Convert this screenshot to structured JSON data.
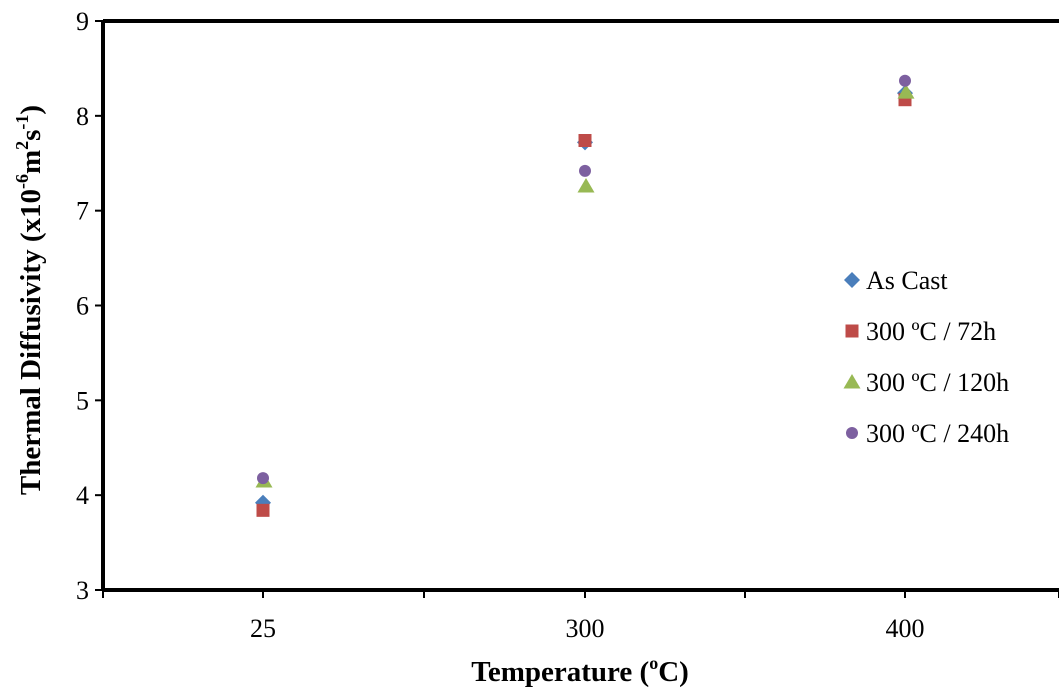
{
  "chart_data": {
    "type": "scatter",
    "title": "",
    "xlabel": "Temperature (°C)",
    "xlabel_main": "Temperature (",
    "xlabel_sup": "o",
    "xlabel_end": "C)",
    "ylabel": "Thermal Diffusivity (x10-6m2s-1)",
    "ylabel_main": "Thermal Diffusivity (x10",
    "ylabel_sup1": "-6",
    "ylabel_mid": "m",
    "ylabel_sup2": "2",
    "ylabel_mid2": "s",
    "ylabel_sup3": "-1",
    "ylabel_end": ")",
    "categories": [
      "25",
      "300",
      "400"
    ],
    "ylim": [
      3,
      9
    ],
    "yticks": [
      "3",
      "4",
      "5",
      "6",
      "7",
      "8",
      "9"
    ],
    "grid": false,
    "legend_position": "right",
    "series": [
      {
        "name": "As Cast",
        "marker": "diamond",
        "color": "#4a7ebb",
        "values": [
          3.92,
          7.72,
          8.24
        ]
      },
      {
        "name": "300 ºC / 72h",
        "marker": "square",
        "color": "#be4b48",
        "values": [
          3.84,
          7.74,
          8.17
        ]
      },
      {
        "name": "300 ºC / 120h",
        "marker": "triangle",
        "color": "#98b954",
        "values": [
          4.15,
          7.26,
          8.25
        ]
      },
      {
        "name": "300 ºC / 240h",
        "marker": "circle",
        "color": "#7d60a0",
        "values": [
          4.18,
          7.42,
          8.37
        ]
      }
    ]
  }
}
